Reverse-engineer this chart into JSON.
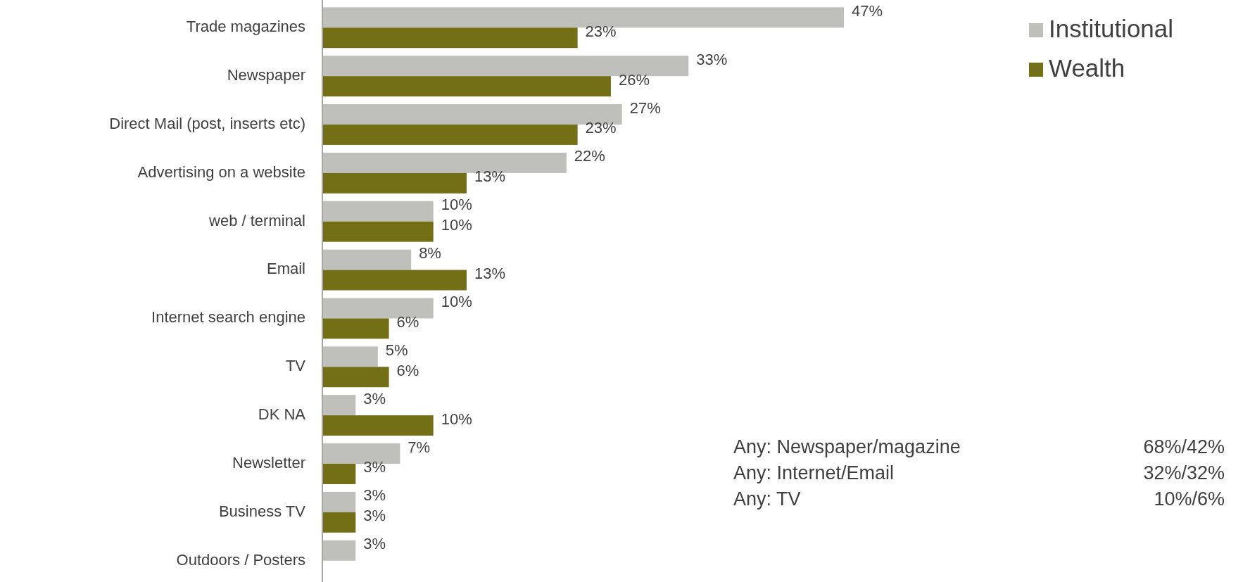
{
  "chart_data": {
    "type": "bar",
    "orientation": "horizontal",
    "categories": [
      "Trade magazines",
      "Newspaper",
      "Direct Mail (post, inserts etc)",
      "Advertising on a website",
      "web / terminal",
      "Email",
      "Internet search engine",
      "TV",
      "DK NA",
      "Newsletter",
      "Business TV",
      "Outdoors / Posters"
    ],
    "series": [
      {
        "name": "Institutional",
        "color": "#bfbfbb",
        "values": [
          47,
          33,
          27,
          22,
          10,
          8,
          10,
          5,
          3,
          7,
          3,
          3
        ],
        "value_labels": [
          "47%",
          "33%",
          "27%",
          "22%",
          "10%",
          "8%",
          "10%",
          "5%",
          "3%",
          "7%",
          "3%",
          "3%"
        ]
      },
      {
        "name": "Wealth",
        "color": "#736f16",
        "values": [
          23,
          26,
          23,
          13,
          10,
          13,
          6,
          6,
          10,
          3,
          3,
          null
        ],
        "value_labels": [
          "23%",
          "26%",
          "23%",
          "13%",
          "10%",
          "13%",
          "6%",
          "6%",
          "10%",
          "3%",
          "3%",
          null
        ]
      }
    ],
    "legend": "top right",
    "annotations": [
      "Any: Newspaper/magazine",
      "68%/42%",
      "Any: Internet/Email",
      "32%/32%",
      "Any: TV",
      "10%/6%"
    ]
  }
}
